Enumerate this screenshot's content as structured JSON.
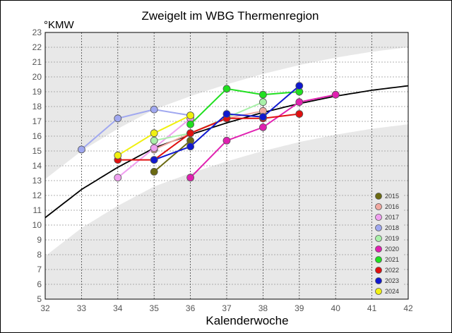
{
  "chart_data": {
    "type": "line",
    "title": "Zweigelt im WBG Thermenregion",
    "ylabel": "°KMW",
    "xlabel": "Kalenderwoche",
    "xlim": [
      32,
      42
    ],
    "ylim": [
      5,
      23
    ],
    "x_ticks": [
      "32",
      "33",
      "34",
      "35",
      "36",
      "37",
      "38",
      "39",
      "40",
      "41",
      "42"
    ],
    "y_ticks": [
      "5",
      "6",
      "7",
      "8",
      "9",
      "10",
      "11",
      "12",
      "13",
      "14",
      "15",
      "16",
      "17",
      "18",
      "19",
      "20",
      "21",
      "22",
      "23"
    ],
    "grid": true,
    "legend_position": "right",
    "trend": {
      "color": "#000000",
      "x": [
        32,
        33,
        34,
        35,
        36,
        37,
        38,
        39,
        40,
        41,
        42
      ],
      "y": [
        10.5,
        12.4,
        13.9,
        15.2,
        16.1,
        16.9,
        17.6,
        18.2,
        18.7,
        19.1,
        19.4
      ]
    },
    "series": [
      {
        "name": "2015",
        "color": "#6b6a12",
        "x": [
          35,
          36
        ],
        "y": [
          13.6,
          15.7
        ]
      },
      {
        "name": "2016",
        "color": "#f0a8a0",
        "x": [
          35,
          36,
          37,
          38
        ],
        "y": [
          15.1,
          16.2,
          17.2,
          17.7
        ]
      },
      {
        "name": "2017",
        "color": "#f0a0f0",
        "x": [
          34,
          35,
          36
        ],
        "y": [
          13.2,
          15.2,
          17.2
        ]
      },
      {
        "name": "2018",
        "color": "#a0a8f0",
        "x": [
          33,
          34,
          35,
          36
        ],
        "y": [
          15.1,
          17.2,
          17.8,
          17.4
        ]
      },
      {
        "name": "2019",
        "color": "#a8f0a8",
        "x": [
          35,
          36,
          38
        ],
        "y": [
          15.7,
          16.2,
          18.3
        ]
      },
      {
        "name": "2020",
        "color": "#e020b0",
        "x": [
          36,
          37,
          38,
          39,
          40
        ],
        "y": [
          13.2,
          15.7,
          16.6,
          18.3,
          18.8
        ]
      },
      {
        "name": "2021",
        "color": "#20e020",
        "x": [
          36,
          37,
          38,
          39
        ],
        "y": [
          16.8,
          19.2,
          18.8,
          19.0
        ]
      },
      {
        "name": "2022",
        "color": "#e01010",
        "x": [
          34,
          35,
          36,
          37,
          38,
          39
        ],
        "y": [
          14.4,
          14.4,
          16.2,
          17.2,
          17.2,
          17.5
        ]
      },
      {
        "name": "2023",
        "color": "#1018d0",
        "x": [
          35,
          36,
          37,
          38,
          39
        ],
        "y": [
          14.4,
          15.3,
          17.5,
          17.3,
          19.4
        ]
      },
      {
        "name": "2024",
        "color": "#f0f010",
        "x": [
          34,
          35,
          36
        ],
        "y": [
          14.7,
          16.2,
          17.4
        ]
      }
    ]
  }
}
